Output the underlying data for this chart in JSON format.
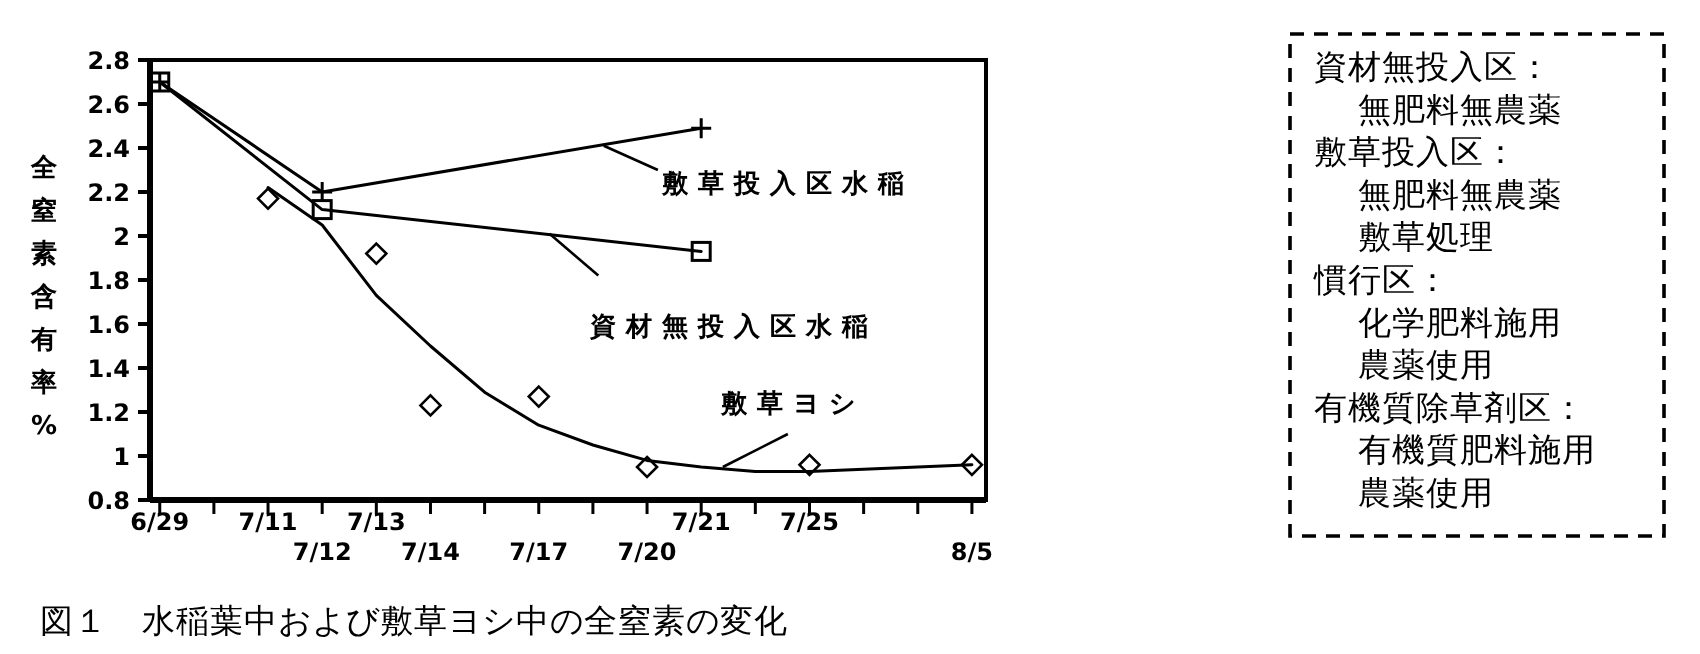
{
  "chart_data": {
    "type": "line",
    "title": "図１　水稲葉中および敷草ヨシ中の全窒素の変化",
    "ylabel": "全窒素含有率%",
    "categories": [
      "6/29",
      null,
      "7/11",
      "7/12",
      "7/13",
      "7/14",
      null,
      "7/17",
      null,
      "7/20",
      "7/21",
      null,
      "7/25",
      null,
      null,
      "8/5"
    ],
    "series": [
      {
        "name": "敷草投入区水稲",
        "color": "#000000",
        "marker": "cross",
        "values": [
          2.7,
          null,
          null,
          2.2,
          null,
          null,
          null,
          null,
          null,
          null,
          2.49,
          null,
          null,
          null,
          null,
          null
        ]
      },
      {
        "name": "資材無投入区水稲",
        "color": "#000000",
        "marker": "square",
        "values": [
          2.7,
          null,
          null,
          2.12,
          null,
          null,
          null,
          null,
          null,
          null,
          1.93,
          null,
          null,
          null,
          null,
          null
        ]
      },
      {
        "name": "敷草ヨシ",
        "type": "scatter",
        "color": "#000000",
        "marker": "diamond",
        "values": [
          null,
          null,
          2.17,
          null,
          1.92,
          1.23,
          null,
          1.27,
          null,
          0.95,
          null,
          null,
          0.96,
          null,
          null,
          0.96
        ]
      },
      {
        "type": "line",
        "color": "#000000",
        "marker": "none",
        "values": [
          null,
          null,
          2.22,
          2.05,
          1.73,
          1.5,
          1.29,
          1.14,
          1.05,
          0.98,
          0.95,
          0.93,
          0.93,
          0.94,
          0.95,
          0.96
        ]
      }
    ],
    "ylim": [
      0.8,
      2.8
    ],
    "yticks": [
      0.8,
      1,
      1.2,
      1.4,
      1.6,
      1.8,
      2,
      2.2,
      2.4,
      2.6,
      2.8
    ],
    "grid": false,
    "line_style": "solid",
    "annotations": [
      "資材無投入区：",
      "無肥料無農薬",
      "敷草投入区：",
      "無肥料無農薬",
      "敷草処理",
      "慣行区：",
      "化学肥料施用",
      "農薬使用",
      "有機質除草剤区：",
      "有機質肥料施用",
      "農薬使用"
    ]
  }
}
